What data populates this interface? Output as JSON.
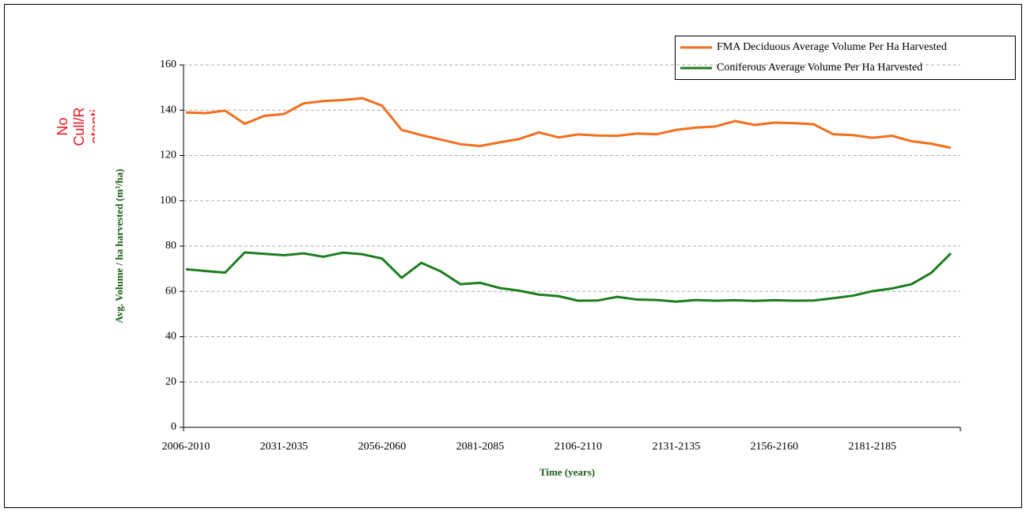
{
  "chart_data": {
    "type": "line",
    "annotation": [
      "No",
      "Cull/R",
      "etenti"
    ],
    "x_label": "Time (years)",
    "y_label": "Avg. Volume / ha harvested (m³/ha)",
    "categories": [
      "2006-2010",
      null,
      null,
      null,
      null,
      "2031-2035",
      null,
      null,
      null,
      null,
      "2056-2060",
      null,
      null,
      null,
      null,
      "2081-2085",
      null,
      null,
      null,
      null,
      "2106-2110",
      null,
      null,
      null,
      null,
      "2131-2135",
      null,
      null,
      null,
      null,
      "2156-2160",
      null,
      null,
      null,
      null,
      "2181-2185",
      null,
      null,
      null,
      null
    ],
    "series": [
      {
        "name": "FMA Deciduous Average Volume Per Ha Harvested",
        "color": "#f26f1d",
        "values": [
          139,
          138.7,
          139.8,
          134,
          137.5,
          138.3,
          143,
          144,
          144.5,
          145.3,
          142,
          131.3,
          129,
          127,
          125,
          124.2,
          125.8,
          127.3,
          130.2,
          128,
          129.3,
          128.8,
          128.7,
          129.7,
          129.4,
          131.3,
          132.3,
          132.8,
          135.2,
          133.5,
          134.5,
          134.3,
          133.8,
          129.4,
          129,
          127.8,
          128.7,
          126.3,
          125.2,
          123.4
        ]
      },
      {
        "name": "Coniferous Average Volume Per Ha Harvested",
        "color": "#1e7d1e",
        "values": [
          69.8,
          69,
          68.3,
          77.2,
          76.6,
          76,
          76.8,
          75.3,
          77.1,
          76.4,
          74.5,
          66,
          72.6,
          68.8,
          63.2,
          63.8,
          61.5,
          60.3,
          58.6,
          57.9,
          55.9,
          56,
          57.6,
          56.4,
          56.2,
          55.5,
          56.2,
          55.9,
          56.1,
          55.8,
          56.1,
          55.9,
          56,
          57,
          58.1,
          60.1,
          61.3,
          63.2,
          68.2,
          76.8
        ]
      }
    ],
    "ylim": [
      0,
      160
    ],
    "yticks": [
      0,
      20,
      40,
      60,
      80,
      100,
      120,
      140,
      160
    ],
    "grid": true
  }
}
